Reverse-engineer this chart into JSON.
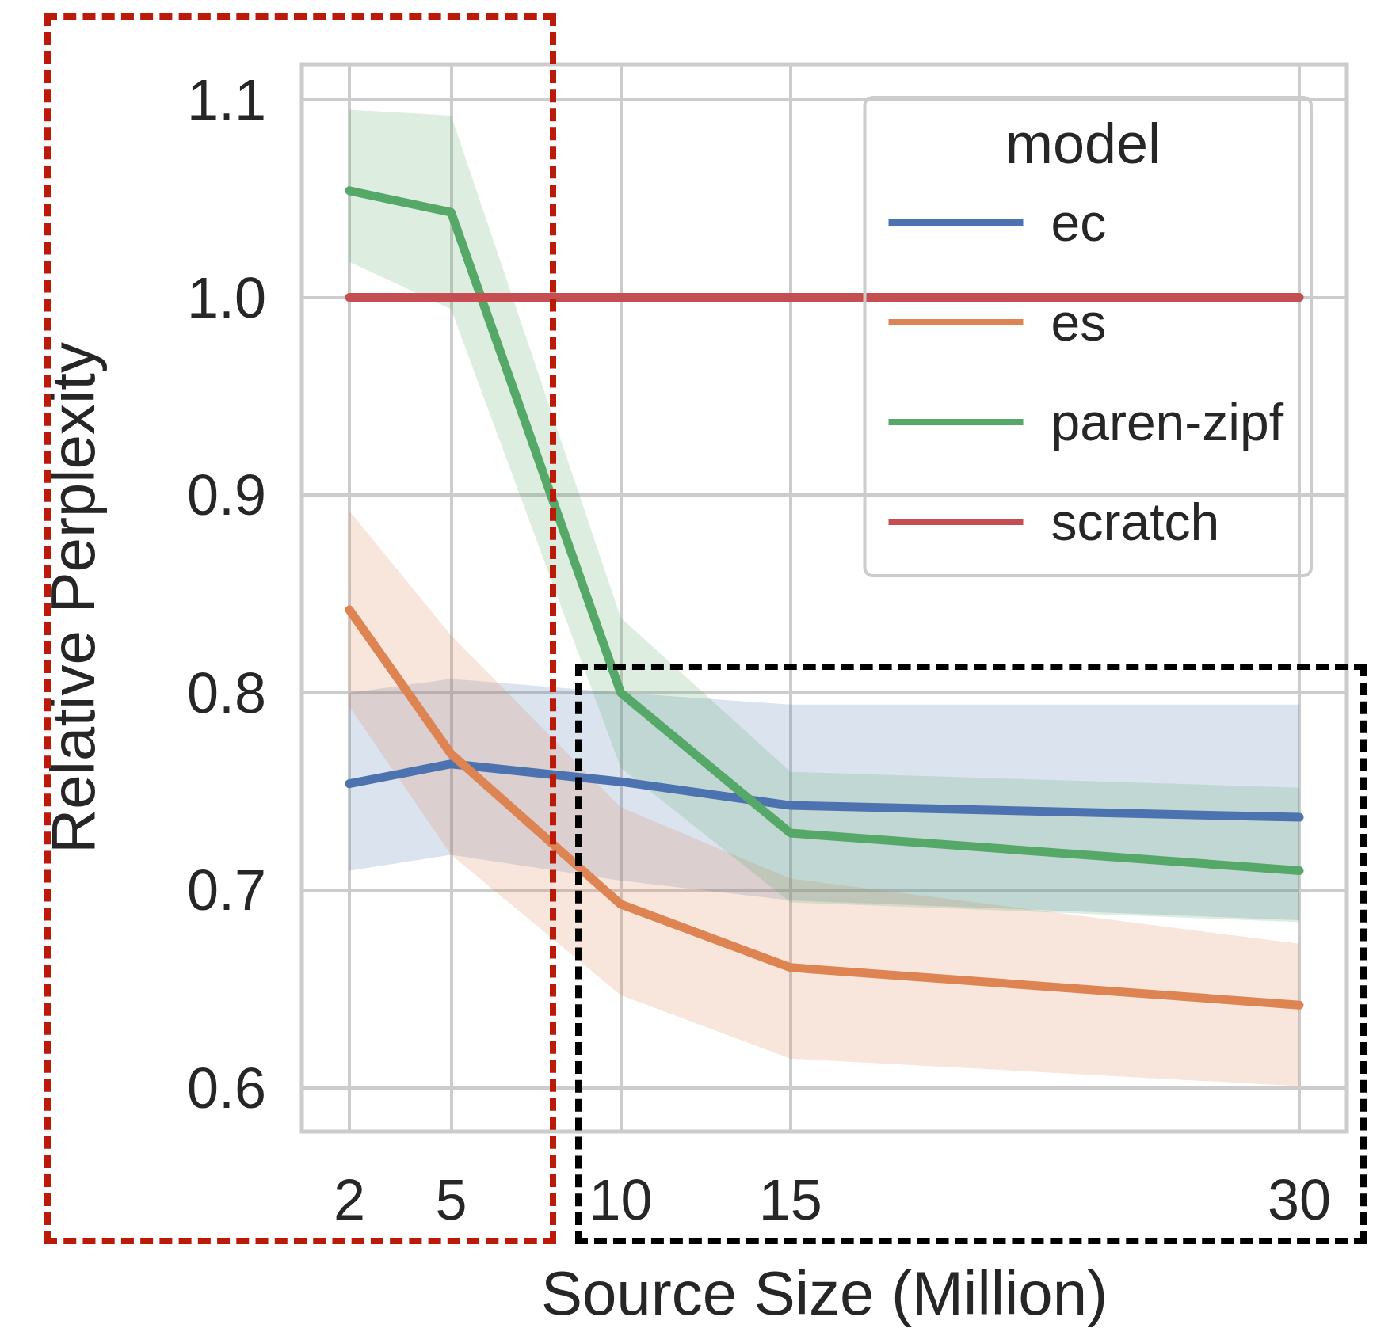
{
  "chart_data": {
    "type": "line",
    "xlabel": "Source Size (Million)",
    "ylabel": "Relative Perplexity",
    "legend_title": "model",
    "x": [
      2,
      5,
      10,
      15,
      30
    ],
    "xlim": [
      0.6,
      31.4
    ],
    "xticks": [
      2,
      5,
      10,
      15,
      30
    ],
    "ylim": [
      0.578,
      1.118
    ],
    "yticks": [
      {
        "value": 0.6,
        "label": "0.6"
      },
      {
        "value": 0.7,
        "label": "0.7"
      },
      {
        "value": 0.8,
        "label": "0.8"
      },
      {
        "value": 0.9,
        "label": "0.9"
      },
      {
        "value": 1,
        "label": "1.0"
      },
      {
        "value": 1.1,
        "label": "1.1"
      }
    ],
    "grid": true,
    "legend": "top right",
    "marker": "none",
    "line_style": "solid",
    "series": [
      {
        "name": "ec",
        "color": "#4c72b0",
        "values": [
          0.754,
          0.764,
          0.755,
          0.743,
          0.737
        ],
        "lower": [
          0.71,
          0.718,
          0.705,
          0.695,
          0.685
        ],
        "upper": [
          0.8,
          0.807,
          0.8,
          0.794,
          0.794
        ]
      },
      {
        "name": "es",
        "color": "#dd8452",
        "values": [
          0.842,
          0.769,
          0.693,
          0.661,
          0.642
        ],
        "lower": [
          0.793,
          0.718,
          0.647,
          0.615,
          0.601
        ],
        "upper": [
          0.892,
          0.829,
          0.742,
          0.706,
          0.673
        ]
      },
      {
        "name": "paren-zipf",
        "color": "#55a868",
        "values": [
          1.054,
          1.043,
          0.8,
          0.729,
          0.71
        ],
        "lower": [
          1.018,
          0.994,
          0.762,
          0.694,
          0.684
        ],
        "upper": [
          1.095,
          1.092,
          0.838,
          0.76,
          0.752
        ]
      },
      {
        "name": "scratch",
        "color": "#c44e52",
        "values": [
          1,
          1,
          1,
          1,
          1
        ]
      }
    ]
  }
}
